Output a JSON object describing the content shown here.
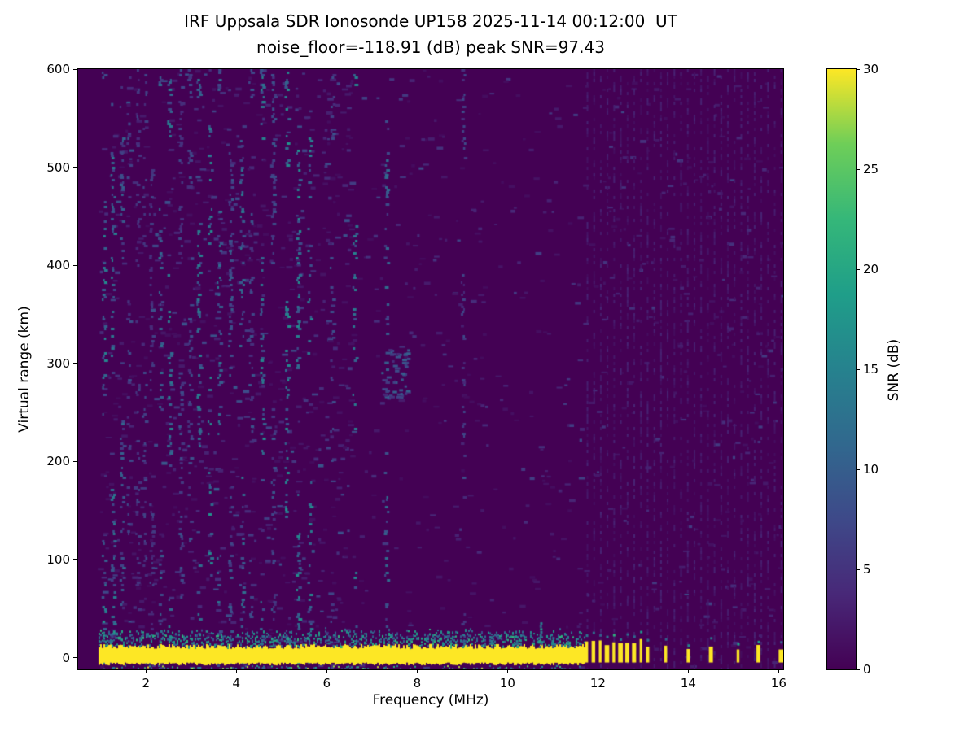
{
  "chart_data": {
    "type": "heatmap",
    "title": "IRF Uppsala SDR Ionosonde UP158 2025-11-14 00:12:00  UT",
    "subtitle": "noise_floor=-118.91 (dB) peak SNR=97.43",
    "xlabel": "Frequency (MHz)",
    "ylabel": "Virtual range (km)",
    "xlim": [
      0.5,
      16.1
    ],
    "ylim": [
      -12,
      600
    ],
    "xticks": [
      2,
      4,
      6,
      8,
      10,
      12,
      14,
      16
    ],
    "yticks": [
      0,
      100,
      200,
      300,
      400,
      500,
      600
    ],
    "grid": false,
    "colorbar": {
      "label": "SNR (dB)",
      "min": 0,
      "max": 30,
      "ticks": [
        0,
        5,
        10,
        15,
        20,
        25,
        30
      ]
    },
    "colormap": {
      "name": "viridis",
      "stops": [
        "#440154",
        "#482878",
        "#3e4989",
        "#31688e",
        "#26828e",
        "#1f9e89",
        "#35b779",
        "#6ece58",
        "#fde725"
      ]
    },
    "heatmap_model": {
      "background_snr": 0,
      "data_freq_range": [
        0.95,
        16.15
      ],
      "ground_return": {
        "freq_range": [
          0.95,
          11.7
        ],
        "center_km": 2,
        "half_thickness_km": 7,
        "snr": 30
      },
      "ground_spikes": [
        {
          "f": 6.3,
          "h": 14
        },
        {
          "f": 9.0,
          "h": 16
        },
        {
          "f": 9.6,
          "h": 20
        },
        {
          "f": 10.2,
          "h": 18
        },
        {
          "f": 10.7,
          "h": 38
        },
        {
          "f": 11.0,
          "h": 22
        },
        {
          "f": 11.3,
          "h": 16
        }
      ],
      "noise_streak_freqs": [
        1.05,
        1.25,
        1.45,
        1.6,
        1.8,
        1.95,
        2.1,
        2.3,
        2.5,
        2.75,
        2.95,
        3.15,
        3.4,
        3.6,
        3.85,
        4.1,
        4.3,
        4.55,
        4.8,
        5.1,
        5.35,
        5.6,
        6.1,
        6.6,
        7.3,
        9.0
      ],
      "rfi_blip_freqs": [
        11.75,
        11.9,
        12.05,
        12.2,
        12.35,
        12.5,
        12.65,
        12.8,
        12.95,
        13.1,
        13.5,
        14.0,
        14.5,
        15.1,
        15.55,
        16.05
      ],
      "comb_range": [
        11.75,
        16.15
      ],
      "comb_step": 0.148,
      "smudge": {
        "f": 7.5,
        "km": 290
      },
      "seed": 42
    }
  }
}
